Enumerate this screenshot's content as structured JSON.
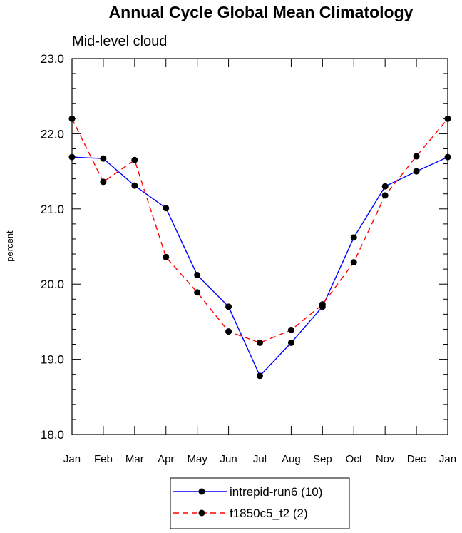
{
  "chart_data": {
    "type": "line",
    "title": "Annual Cycle Global Mean Climatology",
    "subtitle": "Mid-level cloud",
    "xlabel": "",
    "ylabel": "percent",
    "categories": [
      "Jan",
      "Feb",
      "Mar",
      "Apr",
      "May",
      "Jun",
      "Jul",
      "Aug",
      "Sep",
      "Oct",
      "Nov",
      "Dec",
      "Jan"
    ],
    "ylim": [
      18.0,
      23.0
    ],
    "yticks": [
      "18.0",
      "19.0",
      "20.0",
      "21.0",
      "22.0",
      "23.0"
    ],
    "series": [
      {
        "name": "intrepid-run6 (10)",
        "color": "#0000ff",
        "dash": "solid",
        "values": [
          21.69,
          21.67,
          21.31,
          21.01,
          20.12,
          19.7,
          18.78,
          19.22,
          19.7,
          20.62,
          21.3,
          21.5,
          21.69
        ]
      },
      {
        "name": "f1850c5_t2 (2)",
        "color": "#ff0000",
        "dash": "dashed",
        "values": [
          22.2,
          21.36,
          21.65,
          20.36,
          19.89,
          19.37,
          19.22,
          19.39,
          19.73,
          20.29,
          21.18,
          21.7,
          22.2
        ]
      }
    ],
    "legend_position": "bottom-center",
    "grid": false
  }
}
